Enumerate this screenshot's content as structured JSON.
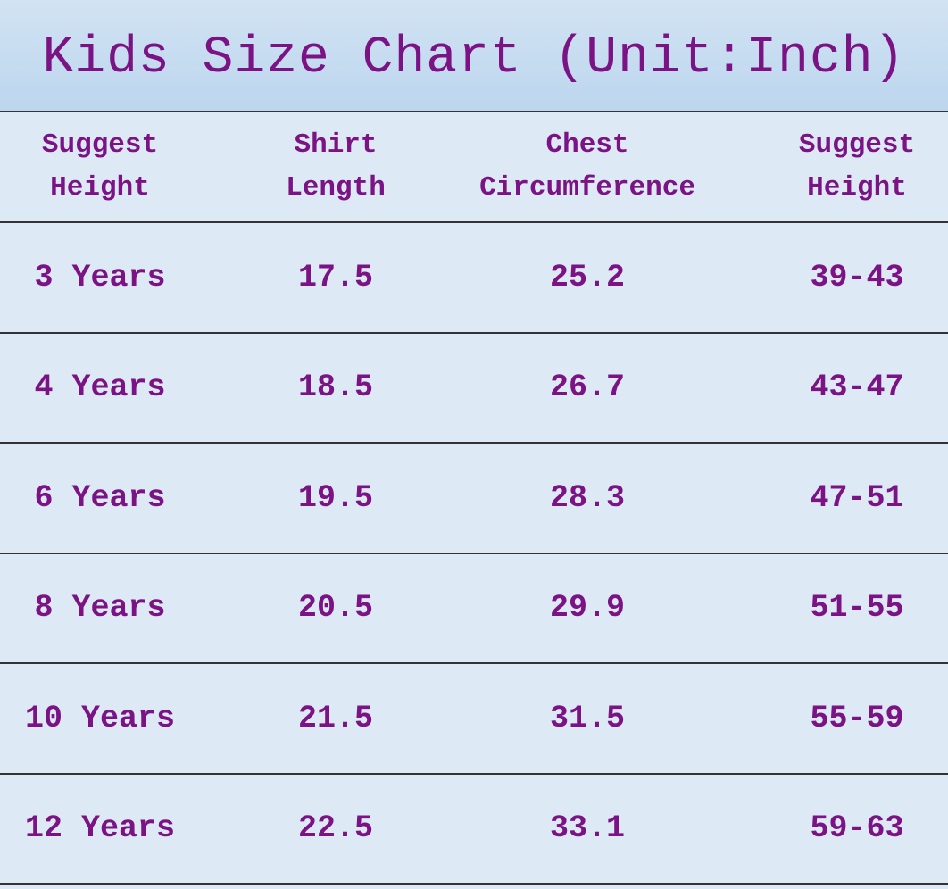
{
  "title": "Kids Size Chart (Unit:Inch)",
  "table": {
    "header": [
      [
        "Suggest",
        "Height"
      ],
      [
        "Shirt",
        "Length"
      ],
      [
        "Chest",
        "Circumference"
      ],
      [
        "Suggest",
        "Height"
      ]
    ],
    "rows": [
      [
        "3 Years",
        "17.5",
        "25.2",
        "39-43"
      ],
      [
        "4 Years",
        "18.5",
        "26.7",
        "43-47"
      ],
      [
        "6 Years",
        "19.5",
        "28.3",
        "47-51"
      ],
      [
        "8 Years",
        "20.5",
        "29.9",
        "51-55"
      ],
      [
        "10 Years",
        "21.5",
        "31.5",
        "55-59"
      ],
      [
        "12 Years",
        "22.5",
        "33.1",
        "59-63"
      ]
    ]
  }
}
